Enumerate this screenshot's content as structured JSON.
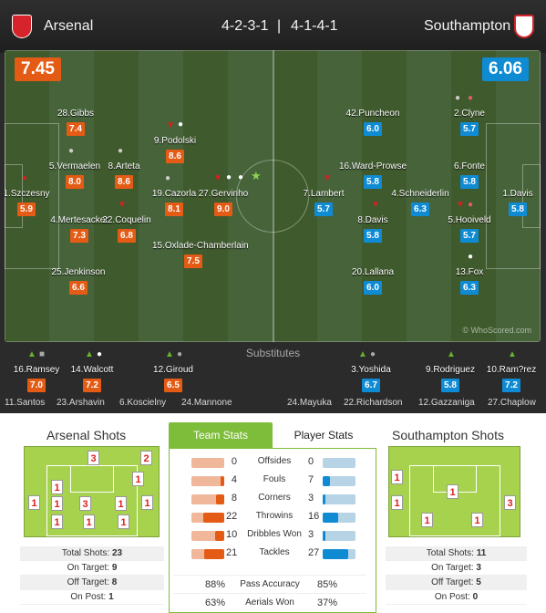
{
  "header": {
    "home_team": "Arsenal",
    "away_team": "Southampton",
    "home_formation": "4-2-3-1",
    "away_formation": "4-1-4-1",
    "separator": "|"
  },
  "pitch": {
    "home_rating": "7.45",
    "away_rating": "6.06",
    "watermark": "© WhoScored.com",
    "home_players": [
      {
        "name": "28.Gibbs",
        "rating": "7.4"
      },
      {
        "name": "9.Podolski",
        "rating": "8.6"
      },
      {
        "name": "5.Vermaelen",
        "rating": "8.0"
      },
      {
        "name": "8.Arteta",
        "rating": "8.6"
      },
      {
        "name": "1.Szczesny",
        "rating": "5.9"
      },
      {
        "name": "19.Cazorla",
        "rating": "8.1"
      },
      {
        "name": "27.Gervinho",
        "rating": "9.0"
      },
      {
        "name": "4.Mertesacker",
        "rating": "7.3"
      },
      {
        "name": "22.Coquelin",
        "rating": "6.8"
      },
      {
        "name": "15.Oxlade-Chamberlain",
        "rating": "7.5"
      },
      {
        "name": "25.Jenkinson",
        "rating": "6.6"
      }
    ],
    "away_players": [
      {
        "name": "42.Puncheon",
        "rating": "6.0"
      },
      {
        "name": "2.Clyne",
        "rating": "5.7"
      },
      {
        "name": "16.Ward-Prowse",
        "rating": "5.8"
      },
      {
        "name": "6.Fonte",
        "rating": "5.8"
      },
      {
        "name": "7.Lambert",
        "rating": "5.7"
      },
      {
        "name": "4.Schneiderlin",
        "rating": "6.3"
      },
      {
        "name": "1.Davis",
        "rating": "5.8"
      },
      {
        "name": "8.Davis",
        "rating": "5.8"
      },
      {
        "name": "5.Hooiveld",
        "rating": "5.7"
      },
      {
        "name": "20.Lallana",
        "rating": "6.0"
      },
      {
        "name": "13.Fox",
        "rating": "6.3"
      }
    ]
  },
  "substitutes": {
    "title": "Substitutes",
    "home_used": [
      {
        "name": "16.Ramsey",
        "rating": "7.0"
      },
      {
        "name": "14.Walcott",
        "rating": "7.2"
      },
      {
        "name": "12.Giroud",
        "rating": "6.5"
      }
    ],
    "away_used": [
      {
        "name": "3.Yoshida",
        "rating": "6.7"
      },
      {
        "name": "9.Rodriguez",
        "rating": "5.8"
      },
      {
        "name": "10.Ram?rez",
        "rating": "7.2"
      }
    ],
    "home_bench": [
      "11.Santos",
      "23.Arshavin",
      "6.Koscielny",
      "24.Mannone"
    ],
    "away_bench": [
      "24.Mayuka",
      "22.Richardson",
      "12.Gazzaniga",
      "27.Chaplow"
    ]
  },
  "home_shots": {
    "title": "Arsenal Shots",
    "goal_top": [
      "3",
      "2"
    ],
    "inside": [
      "1",
      "1",
      "1",
      "1",
      "3",
      "1",
      "1",
      "1",
      "1",
      "1"
    ],
    "stats": [
      {
        "label": "Total Shots:",
        "value": "23"
      },
      {
        "label": "On Target:",
        "value": "9"
      },
      {
        "label": "Off Target:",
        "value": "8"
      },
      {
        "label": "On Post:",
        "value": "1"
      }
    ]
  },
  "away_shots": {
    "title": "Southampton Shots",
    "inside": [
      "1",
      "1",
      "1",
      "1",
      "3",
      "1",
      "1"
    ],
    "stats": [
      {
        "label": "Total Shots:",
        "value": "11"
      },
      {
        "label": "On Target:",
        "value": "3"
      },
      {
        "label": "Off Target:",
        "value": "5"
      },
      {
        "label": "On Post:",
        "value": "0"
      }
    ]
  },
  "tabs": {
    "team_stats": "Team Stats",
    "player_stats": "Player Stats"
  },
  "team_stats": [
    {
      "label": "Offsides",
      "home": "0",
      "away": "0",
      "home_frac": 0.0,
      "away_frac": 0.0
    },
    {
      "label": "Fouls",
      "home": "4",
      "away": "7",
      "home_frac": 0.12,
      "away_frac": 0.21
    },
    {
      "label": "Corners",
      "home": "8",
      "away": "3",
      "home_frac": 0.24,
      "away_frac": 0.09
    },
    {
      "label": "Throwins",
      "home": "22",
      "away": "16",
      "home_frac": 0.65,
      "away_frac": 0.47
    },
    {
      "label": "Dribbles Won",
      "home": "10",
      "away": "3",
      "home_frac": 0.29,
      "away_frac": 0.09
    },
    {
      "label": "Tackles",
      "home": "21",
      "away": "27",
      "home_frac": 0.62,
      "away_frac": 0.79
    }
  ],
  "percent_stats": [
    {
      "label": "Pass Accuracy",
      "home": "88%",
      "away": "85%"
    },
    {
      "label": "Aerials Won",
      "home": "63%",
      "away": "37%"
    }
  ],
  "colors": {
    "home": "#e35b14",
    "away": "#0f8bd4",
    "pitch": "#46633a",
    "goal_green": "#a7d24d"
  }
}
